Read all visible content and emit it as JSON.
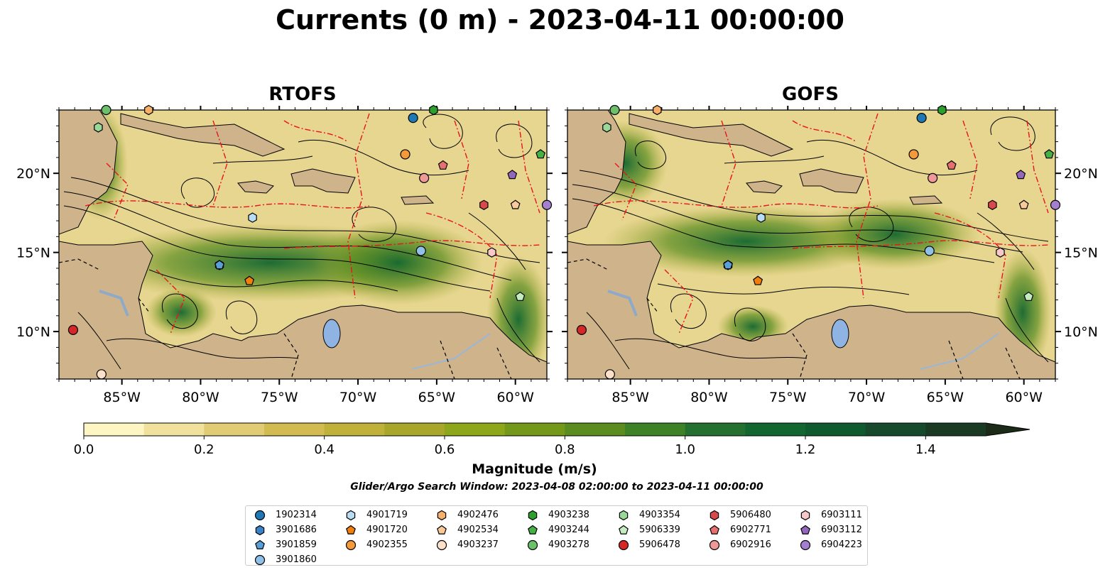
{
  "title": "Currents (0 m) - 2023-04-11 00:00:00",
  "panels": [
    {
      "title": "RTOFS"
    },
    {
      "title": "GOFS"
    }
  ],
  "lon_ticks": [
    "85°W",
    "80°W",
    "75°W",
    "70°W",
    "65°W",
    "60°W"
  ],
  "lat_ticks": [
    "20°N",
    "15°N",
    "10°N"
  ],
  "map_extent": {
    "lon": [
      -89,
      -58
    ],
    "lat": [
      7,
      24
    ]
  },
  "colorbar": {
    "label": "Magnitude (m/s)",
    "range": [
      0,
      1.5
    ],
    "extend": "max",
    "ticks": [
      "0.0",
      "0.2",
      "0.4",
      "0.6",
      "0.8",
      "1.0",
      "1.2",
      "1.4"
    ],
    "colors": [
      "#fdf6c3",
      "#f0e29c",
      "#e0cc74",
      "#d2bc52",
      "#bfb13a",
      "#a8a72c",
      "#8ea61a",
      "#74981a",
      "#5a8c1f",
      "#3e8226",
      "#237030",
      "#12662f",
      "#0f5a2f",
      "#174a2c",
      "#1a3a24",
      "#1b2b18"
    ]
  },
  "search_window": "Glider/Argo Search Window: 2023-04-08 02:00:00 to 2023-04-11 00:00:00",
  "legend": [
    {
      "id": "1902314",
      "marker": "circle",
      "color": "#1f77b4"
    },
    {
      "id": "3901686",
      "marker": "hexagon",
      "color": "#3a82c8"
    },
    {
      "id": "3901859",
      "marker": "pentagon",
      "color": "#5a9fd8"
    },
    {
      "id": "3901860",
      "marker": "circle",
      "color": "#8ec0e8"
    },
    {
      "id": "4901719",
      "marker": "hexagon",
      "color": "#b9dcf5"
    },
    {
      "id": "4901720",
      "marker": "pentagon",
      "color": "#f07f0e"
    },
    {
      "id": "4902355",
      "marker": "circle",
      "color": "#f59a3a"
    },
    {
      "id": "4902476",
      "marker": "hexagon",
      "color": "#f7b06a"
    },
    {
      "id": "4902534",
      "marker": "pentagon",
      "color": "#fac99a"
    },
    {
      "id": "4903237",
      "marker": "circle",
      "color": "#fde0c8"
    },
    {
      "id": "4903238",
      "marker": "hexagon",
      "color": "#2ca02c"
    },
    {
      "id": "4903244",
      "marker": "pentagon",
      "color": "#45b045"
    },
    {
      "id": "4903278",
      "marker": "circle",
      "color": "#6cc06c"
    },
    {
      "id": "4903354",
      "marker": "hexagon",
      "color": "#98d898"
    },
    {
      "id": "5906339",
      "marker": "pentagon",
      "color": "#c5ecc0"
    },
    {
      "id": "5906478",
      "marker": "circle",
      "color": "#d62728"
    },
    {
      "id": "5906480",
      "marker": "hexagon",
      "color": "#d84a4a"
    },
    {
      "id": "6902771",
      "marker": "pentagon",
      "color": "#e57070"
    },
    {
      "id": "6902916",
      "marker": "circle",
      "color": "#ee9898"
    },
    {
      "id": "6903111",
      "marker": "hexagon",
      "color": "#f8c8c8"
    },
    {
      "id": "6903112",
      "marker": "pentagon",
      "color": "#9467bd"
    },
    {
      "id": "6904223",
      "marker": "circle",
      "color": "#a47fce"
    }
  ],
  "floats": [
    {
      "id": "1902314",
      "lon": -66.5,
      "lat": 23.5
    },
    {
      "id": "3901686",
      "lon": -78.8,
      "lat": 14.2
    },
    {
      "id": "3901859",
      "lon": -78.8,
      "lat": 14.2
    },
    {
      "id": "3901860",
      "lon": -66.0,
      "lat": 15.1
    },
    {
      "id": "4901719",
      "lon": -76.7,
      "lat": 17.2
    },
    {
      "id": "4901720",
      "lon": -76.9,
      "lat": 13.2
    },
    {
      "id": "4902355",
      "lon": -67.0,
      "lat": 21.2
    },
    {
      "id": "4902476",
      "lon": -83.3,
      "lat": 24.0
    },
    {
      "id": "4902534",
      "lon": -60.0,
      "lat": 18.0
    },
    {
      "id": "4903237",
      "lon": -86.3,
      "lat": 7.3
    },
    {
      "id": "4903238",
      "lon": -65.2,
      "lat": 24.0
    },
    {
      "id": "4903244",
      "lon": -58.4,
      "lat": 21.2
    },
    {
      "id": "4903278",
      "lon": -86.0,
      "lat": 24.0
    },
    {
      "id": "4903354",
      "lon": -86.5,
      "lat": 22.9
    },
    {
      "id": "5906339",
      "lon": -59.7,
      "lat": 12.2
    },
    {
      "id": "5906478",
      "lon": -88.1,
      "lat": 10.1
    },
    {
      "id": "5906480",
      "lon": -62.0,
      "lat": 18.0
    },
    {
      "id": "6902771",
      "lon": -64.6,
      "lat": 20.5
    },
    {
      "id": "6902916",
      "lon": -65.8,
      "lat": 19.7
    },
    {
      "id": "6903111",
      "lon": -61.5,
      "lat": 15.0
    },
    {
      "id": "6903112",
      "lon": -60.2,
      "lat": 19.9
    },
    {
      "id": "6904223",
      "lon": -58.0,
      "lat": 18.0
    }
  ]
}
